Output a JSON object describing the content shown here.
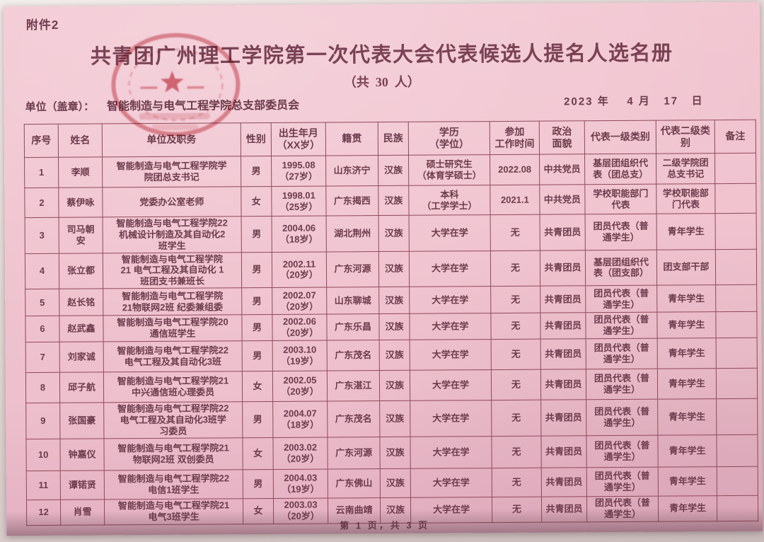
{
  "page": {
    "attachment_label": "附件2",
    "title": "共青团广州理工学院第一次代表大会代表候选人提名人选名册",
    "subtitle": "（共  30  人）",
    "unit_label": "单位（盖章）：",
    "unit_value": "智能制造与电气工程学院总支部委员会",
    "date": "2023 年    4 月   17   日",
    "footer": "第 1 页，共 3 页"
  },
  "seal": {
    "description": "red-circular-league-seal-with-star"
  },
  "colors": {
    "paper": "#f2c7d2",
    "paper2": "#eec0cd",
    "paper3": "#e2aec0",
    "ink": "#6d3c4c",
    "title_ink": "#7a4254",
    "line": "#91495c",
    "seal_red": "#c53a48"
  },
  "table": {
    "headers": [
      "序号",
      "姓名",
      "单位及职务",
      "性别",
      "出生年月\n（XX岁）",
      "籍贯",
      "民族",
      "学历\n（学位）",
      "参加\n工作时间",
      "政治\n面貌",
      "代表一级类别",
      "代表二级类\n别",
      "备注"
    ],
    "rows": [
      [
        "1",
        "李顺",
        "智能制造与电气工程学院学\n院团总支书记",
        "男",
        "1995.08\n（27岁）",
        "山东济宁",
        "汉族",
        "硕士研究生\n（体育学硕士）",
        "2022.08",
        "中共党员",
        "基层团组织代\n表（团总支）",
        "二级学院团\n总支书记",
        ""
      ],
      [
        "2",
        "蔡伊咏",
        "党委办公室老师",
        "女",
        "1998.01\n（25岁）",
        "广东揭西",
        "汉族",
        "本科\n（工学学士）",
        "2021.1",
        "中共党员",
        "学校职能部门\n代表",
        "学校职能部\n门代表",
        ""
      ],
      [
        "3",
        "司马朝\n安",
        "智能制造与电气工程学院22\n机械设计制造及其自动化2\n班学生",
        "男",
        "2004.06\n（18岁）",
        "湖北荆州",
        "汉族",
        "大学在学",
        "无",
        "共青团员",
        "团员代表（普\n通学生）",
        "青年学生",
        ""
      ],
      [
        "4",
        "张立都",
        "智能制造与电气工程学院\n21 电气工程及其自动化 1\n班团支书兼班长",
        "男",
        "2002.11\n（20岁）",
        "广东河源",
        "汉族",
        "大学在学",
        "无",
        "共青团员",
        "基层团组织代\n表（团支部）",
        "团支部干部",
        ""
      ],
      [
        "5",
        "赵长铭",
        "智能制造与电气工程学院\n21物联网2班 纪委兼组委",
        "男",
        "2002.07\n（20岁）",
        "山东聊城",
        "汉族",
        "大学在学",
        "无",
        "共青团员",
        "团员代表（普\n通学生）",
        "青年学生",
        ""
      ],
      [
        "6",
        "赵武鑫",
        "智能制造与电气工程学院20\n通信班学生",
        "男",
        "2002.06\n（20岁）",
        "广东乐昌",
        "汉族",
        "大学在学",
        "无",
        "共青团员",
        "团员代表（普\n通学生）",
        "青年学生",
        ""
      ],
      [
        "7",
        "刘家诚",
        "智能制造与电气工程学院22\n电气工程及其自动化3班",
        "男",
        "2003.10\n（19岁）",
        "广东茂名",
        "汉族",
        "大学在学",
        "无",
        "共青团员",
        "团员代表（普\n通学生）",
        "青年学生",
        ""
      ],
      [
        "8",
        "邱子航",
        "智能制造与电气工程学院21\n中兴通信班心理委员",
        "女",
        "2002.05\n（20岁）",
        "广东湛江",
        "汉族",
        "大学在学",
        "无",
        "共青团员",
        "团员代表（普\n通学生）",
        "青年学生",
        ""
      ],
      [
        "9",
        "张国豪",
        "智能制造与电气工程学院22\n电气工程及其自动化3班学\n习委员",
        "男",
        "2004.07\n（18岁）",
        "广东茂名",
        "汉族",
        "大学在学",
        "无",
        "共青团员",
        "团员代表（普\n通学生）",
        "青年学生",
        ""
      ],
      [
        "10",
        "钟嘉仪",
        "智能制造与电气工程学院21\n物联网2班 双创委员",
        "女",
        "2003.02\n（20岁）",
        "广东河源",
        "汉族",
        "大学在学",
        "无",
        "共青团员",
        "团员代表（普\n通学生）",
        "青年学生",
        ""
      ],
      [
        "11",
        "谭锘贤",
        "智能制造与电气工程学院22\n电信1班学生",
        "男",
        "2004.03\n（19岁）",
        "广东佛山",
        "汉族",
        "大学在学",
        "无",
        "共青团员",
        "团员代表（普\n通学生）",
        "青年学生",
        ""
      ],
      [
        "12",
        "肖雪",
        "智能制造与电气工程学院21\n电气3班学生",
        "女",
        "2003.03\n（20岁）",
        "云南曲靖",
        "汉族",
        "大学在学",
        "无",
        "共青团员",
        "团员代表（普\n通学生）",
        "青年学生",
        ""
      ]
    ]
  }
}
